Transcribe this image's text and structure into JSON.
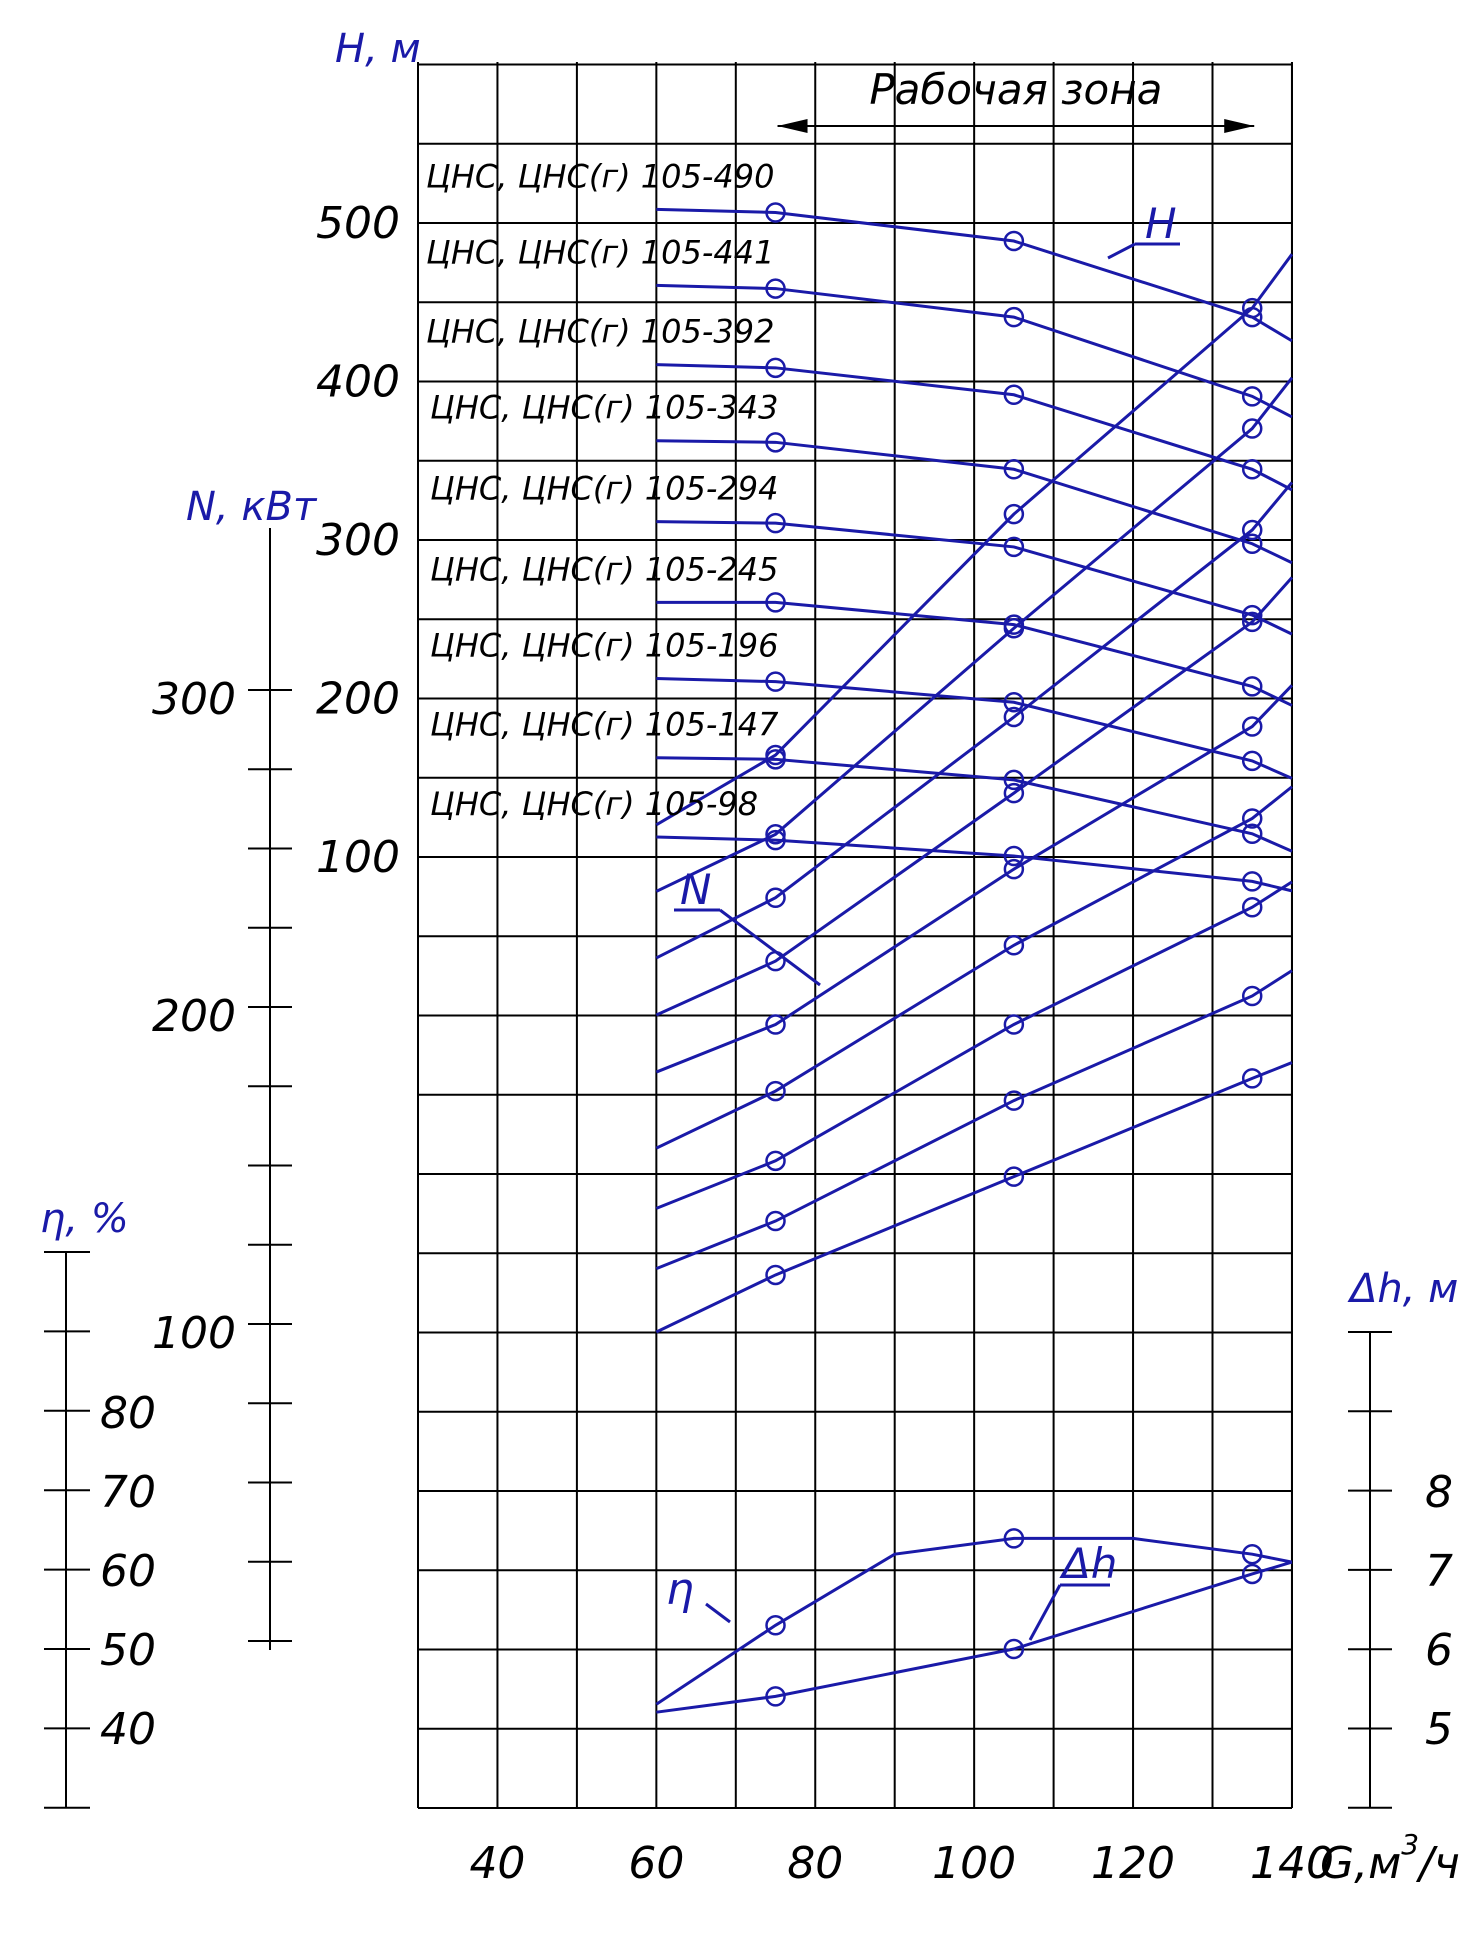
{
  "chart_data": {
    "type": "line",
    "x_axis": {
      "label": "G,м³/ч",
      "label_base": "G,м",
      "label_sup": "3",
      "label_tail": "/ч",
      "ticks": [
        "40",
        "60",
        "80",
        "100",
        "120",
        "140"
      ],
      "range": [
        30,
        140
      ]
    },
    "h_axis": {
      "label": "Н, м",
      "ticks": [
        "100",
        "200",
        "300",
        "400",
        "500"
      ],
      "range": [
        0,
        540
      ]
    },
    "n_axis": {
      "label": "N, кВт",
      "ticks": [
        "100",
        "200",
        "300"
      ]
    },
    "eta_axis": {
      "label": "η, %",
      "ticks": [
        "40",
        "50",
        "60",
        "70",
        "80"
      ]
    },
    "dh_axis": {
      "label": "Δh, м",
      "ticks": [
        "5",
        "6",
        "7",
        "8"
      ]
    },
    "working_zone": {
      "label": "Рабочая зона",
      "from": 75,
      "to": 135
    },
    "curve_labels": {
      "H": "Н",
      "N": "N",
      "eta": "η",
      "dh": "Δh"
    },
    "models": [
      "ЦНС, ЦНС(г)  105-490",
      "ЦНС, ЦНС(г)  105-441",
      "ЦНС, ЦНС(г)  105-392",
      "ЦНС, ЦНС(г)  105-343",
      "ЦНС, ЦНС(г)  105-294",
      "ЦНС, ЦНС(г)  105-245",
      "ЦНС, ЦНС(г)  105-196",
      "ЦНС, ЦНС(г)  105-147",
      "ЦНС, ЦНС(г) 105-98"
    ],
    "h_curves": [
      {
        "name": "105-490",
        "points": [
          [
            60,
            508
          ],
          [
            75,
            506
          ],
          [
            105,
            488
          ],
          [
            135,
            440
          ],
          [
            140,
            425
          ]
        ]
      },
      {
        "name": "105-441",
        "points": [
          [
            60,
            460
          ],
          [
            75,
            458
          ],
          [
            105,
            440
          ],
          [
            135,
            390
          ],
          [
            140,
            377
          ]
        ]
      },
      {
        "name": "105-392",
        "points": [
          [
            60,
            410
          ],
          [
            75,
            408
          ],
          [
            105,
            391
          ],
          [
            135,
            344
          ],
          [
            140,
            331
          ]
        ]
      },
      {
        "name": "105-343",
        "points": [
          [
            60,
            362
          ],
          [
            75,
            361
          ],
          [
            105,
            344
          ],
          [
            135,
            297
          ],
          [
            140,
            285
          ]
        ]
      },
      {
        "name": "105-294",
        "points": [
          [
            60,
            311
          ],
          [
            75,
            310
          ],
          [
            105,
            295
          ],
          [
            135,
            252
          ],
          [
            140,
            240
          ]
        ]
      },
      {
        "name": "105-245",
        "points": [
          [
            60,
            260
          ],
          [
            75,
            260
          ],
          [
            105,
            246
          ],
          [
            135,
            207
          ],
          [
            140,
            195
          ]
        ]
      },
      {
        "name": "105-196",
        "points": [
          [
            60,
            212
          ],
          [
            75,
            210
          ],
          [
            105,
            197
          ],
          [
            135,
            160
          ],
          [
            140,
            149
          ]
        ]
      },
      {
        "name": "105-147",
        "points": [
          [
            60,
            162
          ],
          [
            75,
            161
          ],
          [
            105,
            148
          ],
          [
            135,
            114
          ],
          [
            140,
            103
          ]
        ]
      },
      {
        "name": "105-98",
        "points": [
          [
            60,
            112
          ],
          [
            75,
            110
          ],
          [
            105,
            100
          ],
          [
            135,
            84
          ],
          [
            140,
            78
          ]
        ]
      }
    ],
    "n_curves": [
      {
        "name": "105-490",
        "points": [
          [
            60,
            260
          ],
          [
            75,
            282
          ],
          [
            105,
            358
          ],
          [
            135,
            423
          ],
          [
            140,
            440
          ]
        ]
      },
      {
        "name": "105-441",
        "points": [
          [
            60,
            239
          ],
          [
            75,
            257
          ],
          [
            105,
            322
          ],
          [
            135,
            385
          ],
          [
            140,
            401
          ]
        ]
      },
      {
        "name": "105-392",
        "points": [
          [
            60,
            218
          ],
          [
            75,
            237
          ],
          [
            105,
            294
          ],
          [
            135,
            353
          ],
          [
            140,
            368
          ]
        ]
      },
      {
        "name": "105-343",
        "points": [
          [
            60,
            200
          ],
          [
            75,
            217
          ],
          [
            105,
            270
          ],
          [
            135,
            324
          ],
          [
            140,
            338
          ]
        ]
      },
      {
        "name": "105-294",
        "points": [
          [
            60,
            182
          ],
          [
            75,
            197
          ],
          [
            105,
            246
          ],
          [
            135,
            291
          ],
          [
            140,
            304
          ]
        ]
      },
      {
        "name": "105-245",
        "points": [
          [
            60,
            158
          ],
          [
            75,
            176
          ],
          [
            105,
            222
          ],
          [
            135,
            262
          ],
          [
            140,
            272
          ]
        ]
      },
      {
        "name": "105-196",
        "points": [
          [
            60,
            139
          ],
          [
            75,
            154
          ],
          [
            105,
            197
          ],
          [
            135,
            234
          ],
          [
            140,
            242
          ]
        ]
      },
      {
        "name": "105-147",
        "points": [
          [
            60,
            120
          ],
          [
            75,
            135
          ],
          [
            105,
            173
          ],
          [
            135,
            206
          ],
          [
            140,
            214
          ]
        ]
      },
      {
        "name": "105-98",
        "points": [
          [
            60,
            100
          ],
          [
            75,
            118
          ],
          [
            105,
            149
          ],
          [
            135,
            180
          ],
          [
            140,
            185
          ]
        ]
      }
    ],
    "eta_curve": {
      "name": "η",
      "points": [
        [
          60,
          43
        ],
        [
          75,
          53
        ],
        [
          90,
          62
        ],
        [
          105,
          64
        ],
        [
          120,
          64
        ],
        [
          135,
          62
        ],
        [
          140,
          61
        ]
      ]
    },
    "dh_curve": {
      "name": "Δh",
      "points": [
        [
          60,
          5.2
        ],
        [
          75,
          5.4
        ],
        [
          105,
          6.0
        ],
        [
          135,
          6.95
        ],
        [
          140,
          7.1
        ]
      ]
    }
  }
}
